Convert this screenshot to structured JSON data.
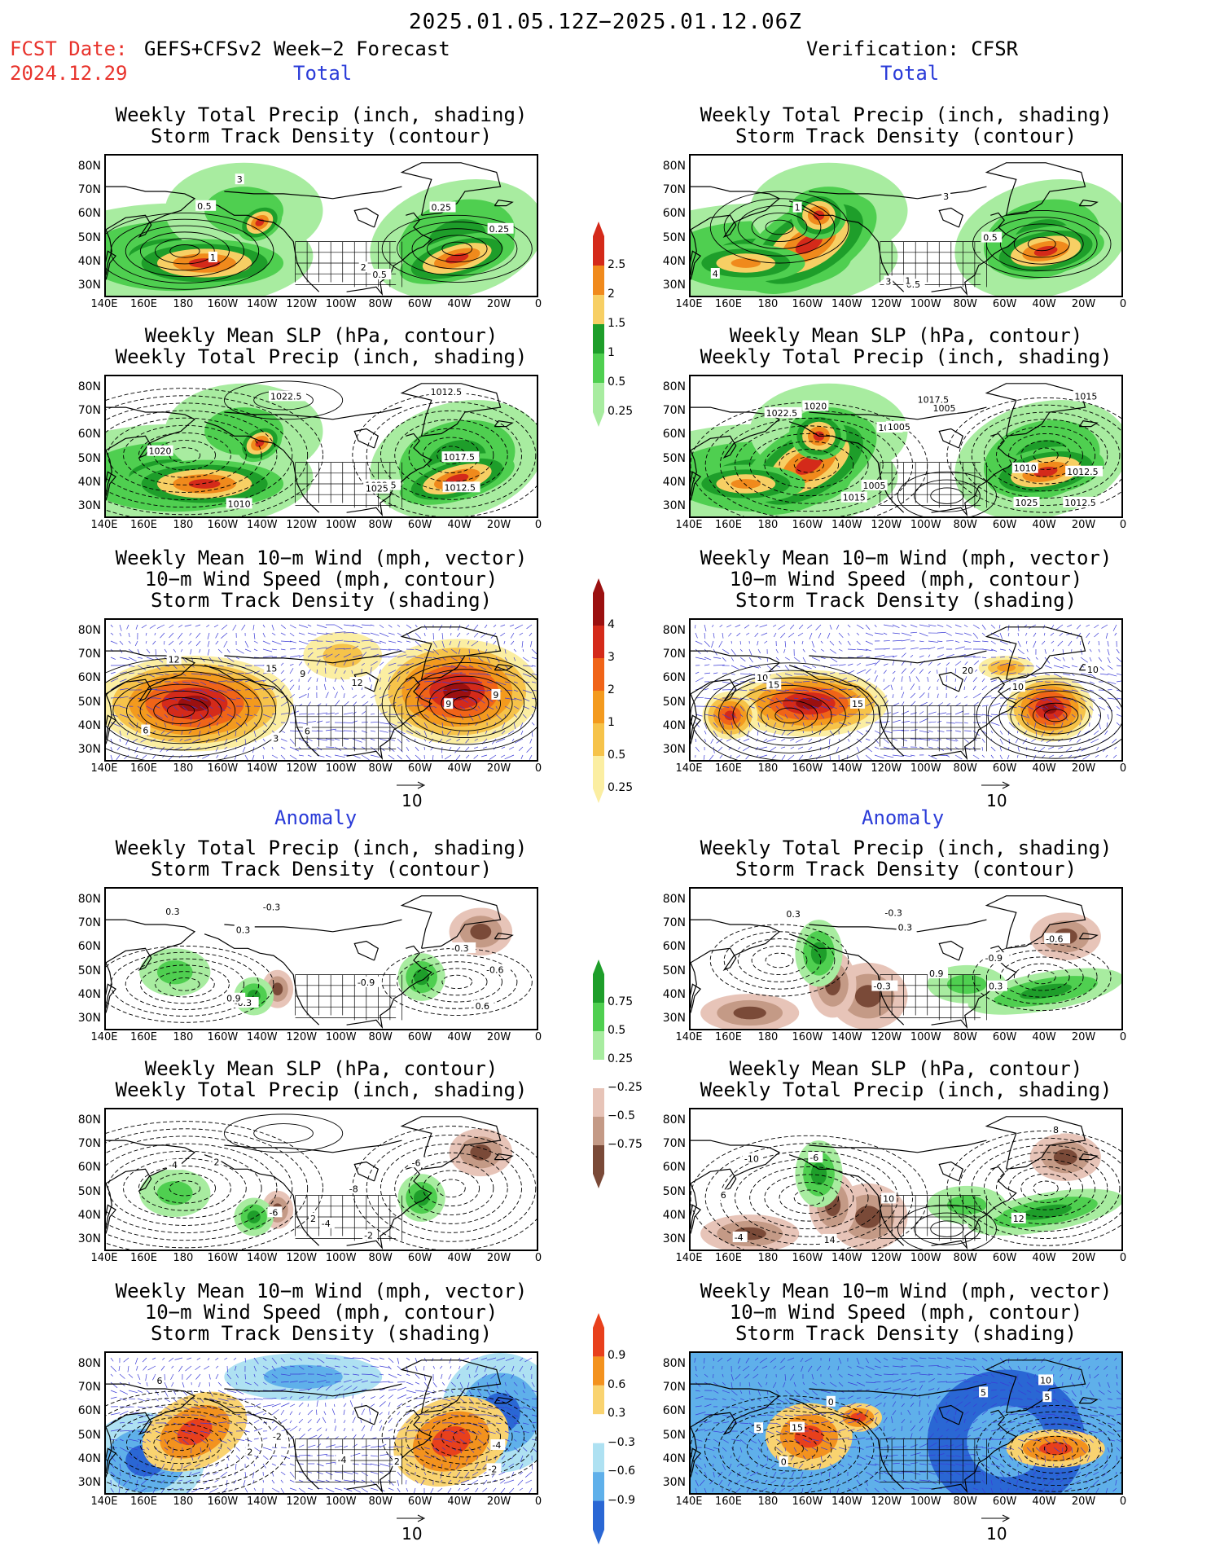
{
  "header": {
    "valid_range": "2025.01.05.12Z−2025.01.12.06Z",
    "fcst_label": "FCST Date:",
    "fcst_model": "GEFS+CFSv2 Week−2 Forecast",
    "fcst_date": "2024.12.29",
    "verification": "Verification: CFSR"
  },
  "sections": {
    "total": "Total",
    "anomaly": "Anomaly"
  },
  "titles": {
    "precip_storm": [
      "Weekly Total Precip (inch, shading)",
      "Storm Track Density (contour)"
    ],
    "slp_precip": [
      "Weekly Mean SLP (hPa, contour)",
      "Weekly Total Precip (inch, shading)"
    ],
    "wind_storm": [
      "Weekly Mean 10−m Wind (mph, vector)",
      "10−m Wind Speed (mph, contour)",
      "Storm Track Density (shading)"
    ]
  },
  "axes": {
    "lat": [
      "80N",
      "70N",
      "60N",
      "50N",
      "40N",
      "30N"
    ],
    "lon": [
      "140E",
      "160E",
      "180",
      "160W",
      "140W",
      "120W",
      "100W",
      "80W",
      "60W",
      "40W",
      "20W",
      "0"
    ]
  },
  "colorbars": {
    "precip_total": {
      "labels": [
        "2.5",
        "2",
        "1.5",
        "1",
        "0.5",
        "0.25"
      ],
      "colors": [
        "#d42a1a",
        "#f08a1c",
        "#f7cf64",
        "#1e9e2a",
        "#4fcf50",
        "#a8ecA0"
      ]
    },
    "storm_total": {
      "labels": [
        "4",
        "3",
        "2",
        "1",
        "0.5",
        "0.25"
      ],
      "colors": [
        "#9b1010",
        "#d42a1a",
        "#f06418",
        "#f39a1e",
        "#f6c34a",
        "#fbeea2"
      ]
    },
    "precip_anom": {
      "labels": [
        "0.75",
        "0.5",
        "0.25",
        "−0.25",
        "−0.5",
        "−0.75"
      ],
      "colors": [
        "#1e9e2a",
        "#4fcf50",
        "#a8eca0",
        "#ffffff",
        "#e7c4b8",
        "#c49a86",
        "#7a4a38"
      ]
    },
    "storm_anom": {
      "labels": [
        "0.9",
        "0.6",
        "0.3",
        "−0.3",
        "−0.6",
        "−0.9"
      ],
      "colors": [
        "#e8401c",
        "#f3921e",
        "#f9d370",
        "#ffffff",
        "#aee1f2",
        "#5fb0ea",
        "#2a67d4"
      ]
    }
  },
  "vector_scale": "10",
  "contour_labels": {
    "fcst_total_precip": [
      "0.5",
      "3",
      "1",
      "0.5",
      "0.25",
      "2",
      "0.25"
    ],
    "fcst_total_slp": [
      "1022.5",
      "1022.5",
      "1012.5",
      "1017.5",
      "1025",
      "1012.5",
      "1010",
      "1020"
    ],
    "fcst_total_wind": [
      "12",
      "9",
      "15",
      "6",
      "9",
      "6",
      "12",
      "9",
      "3"
    ],
    "cfsr_total_precip": [
      "0.5",
      "3",
      "4",
      "1",
      "0.5",
      "1",
      "3"
    ],
    "cfsr_total_slp": [
      "1020",
      "1010",
      "1005",
      "1022.5",
      "1017.5",
      "1020",
      "1012.5",
      "1015",
      "1005",
      "1012.5",
      "1015",
      "1025",
      "1005"
    ],
    "cfsr_total_wind": [
      "10",
      "10",
      "15",
      "10",
      "15",
      "20"
    ],
    "fcst_anom_precip": [
      "-0.3",
      "0.3",
      "-0.6",
      "0.3",
      "-0.3",
      "0.9",
      "0.6",
      "-0.9",
      "-0.3"
    ],
    "fcst_anom_slp": [
      "-8",
      "-2",
      "-4",
      "-6",
      "-4",
      "2",
      "2",
      "-6"
    ],
    "fcst_anom_wind": [
      "2",
      "-4",
      "6",
      "-2",
      "-2",
      "2",
      "-4"
    ],
    "cfsr_anom_precip": [
      "-0.9",
      "-0.3",
      "0.3",
      "-0.3",
      "0.3",
      "-0.6",
      "0.9",
      "0.3"
    ],
    "cfsr_anom_slp": [
      "10",
      "12",
      "14",
      "-4",
      "6",
      "-10",
      "8",
      "-6"
    ],
    "cfsr_anom_wind": [
      "0",
      "5",
      "5",
      "5",
      "10",
      "0",
      "15"
    ]
  }
}
